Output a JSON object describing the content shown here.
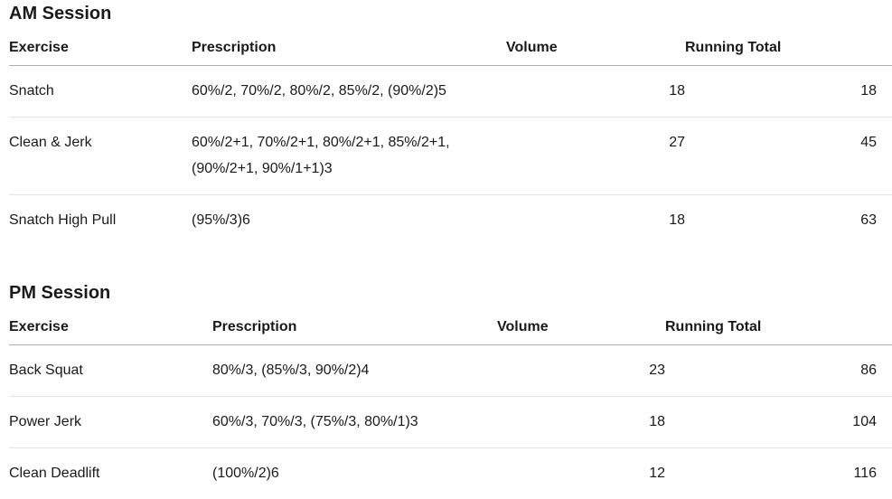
{
  "style": {
    "text_color": "#1a1a1a",
    "header_border_color": "#adadad",
    "row_border_color": "#e4e4e4"
  },
  "columns": {
    "exercise": "Exercise",
    "prescription": "Prescription",
    "volume": "Volume",
    "running_total": "Running Total"
  },
  "sessions": [
    {
      "title": "AM Session",
      "rows": [
        {
          "exercise": "Snatch",
          "prescription": "60%/2, 70%/2, 80%/2, 85%/2, (90%/2)5",
          "volume": "18",
          "running_total": "18"
        },
        {
          "exercise": "Clean & Jerk",
          "prescription": "60%/2+1, 70%/2+1, 80%/2+1, 85%/2+1, (90%/2+1, 90%/1+1)3",
          "volume": "27",
          "running_total": "45"
        },
        {
          "exercise": "Snatch High Pull",
          "prescription": "(95%/3)6",
          "volume": "18",
          "running_total": "63"
        }
      ]
    },
    {
      "title": "PM Session",
      "rows": [
        {
          "exercise": "Back Squat",
          "prescription": "80%/3, (85%/3, 90%/2)4",
          "volume": "23",
          "running_total": "86"
        },
        {
          "exercise": "Power Jerk",
          "prescription": "60%/3, 70%/3, (75%/3, 80%/1)3",
          "volume": "18",
          "running_total": "104"
        },
        {
          "exercise": "Clean Deadlift",
          "prescription": "(100%/2)6",
          "volume": "12",
          "running_total": "116"
        }
      ]
    }
  ]
}
